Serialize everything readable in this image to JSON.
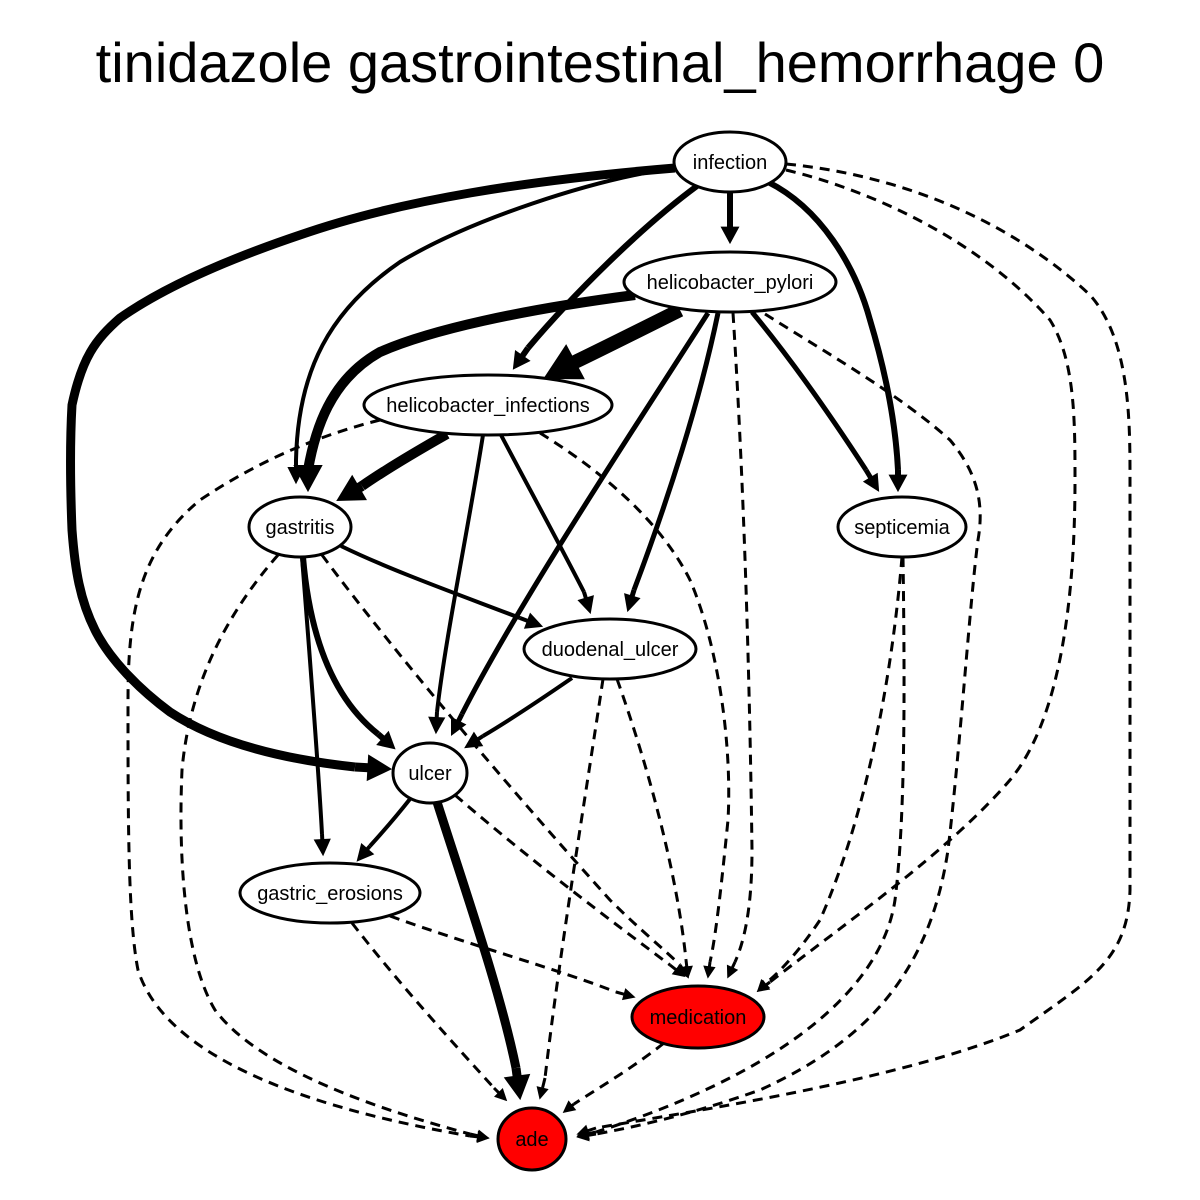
{
  "title": "tinidazole gastrointestinal_hemorrhage 0",
  "colors": {
    "node_fill": "#ffffff",
    "highlight_fill": "#ff0000",
    "stroke": "#000000"
  },
  "nodes": [
    {
      "id": "infection",
      "label": "infection",
      "highlight": false
    },
    {
      "id": "helicobacter_pylori",
      "label": "helicobacter_pylori",
      "highlight": false
    },
    {
      "id": "helicobacter_infections",
      "label": "helicobacter_infections",
      "highlight": false
    },
    {
      "id": "gastritis",
      "label": "gastritis",
      "highlight": false
    },
    {
      "id": "septicemia",
      "label": "septicemia",
      "highlight": false
    },
    {
      "id": "duodenal_ulcer",
      "label": "duodenal_ulcer",
      "highlight": false
    },
    {
      "id": "ulcer",
      "label": "ulcer",
      "highlight": false
    },
    {
      "id": "gastric_erosions",
      "label": "gastric_erosions",
      "highlight": false
    },
    {
      "id": "medication",
      "label": "medication",
      "highlight": true
    },
    {
      "id": "ade",
      "label": "ade",
      "highlight": true
    }
  ],
  "edges": [
    {
      "from": "infection",
      "to": "helicobacter_pylori",
      "style": "solid"
    },
    {
      "from": "infection",
      "to": "helicobacter_infections",
      "style": "solid"
    },
    {
      "from": "infection",
      "to": "gastritis",
      "style": "solid"
    },
    {
      "from": "infection",
      "to": "ulcer",
      "style": "solid"
    },
    {
      "from": "infection",
      "to": "septicemia",
      "style": "solid"
    },
    {
      "from": "infection",
      "to": "medication",
      "style": "dashed"
    },
    {
      "from": "infection",
      "to": "ade",
      "style": "dashed"
    },
    {
      "from": "helicobacter_pylori",
      "to": "helicobacter_infections",
      "style": "solid"
    },
    {
      "from": "helicobacter_pylori",
      "to": "gastritis",
      "style": "solid"
    },
    {
      "from": "helicobacter_pylori",
      "to": "ulcer",
      "style": "solid"
    },
    {
      "from": "helicobacter_pylori",
      "to": "duodenal_ulcer",
      "style": "solid"
    },
    {
      "from": "helicobacter_pylori",
      "to": "septicemia",
      "style": "solid"
    },
    {
      "from": "helicobacter_pylori",
      "to": "medication",
      "style": "dashed"
    },
    {
      "from": "helicobacter_pylori",
      "to": "ade",
      "style": "dashed"
    },
    {
      "from": "helicobacter_infections",
      "to": "gastritis",
      "style": "solid"
    },
    {
      "from": "helicobacter_infections",
      "to": "ulcer",
      "style": "solid"
    },
    {
      "from": "helicobacter_infections",
      "to": "duodenal_ulcer",
      "style": "solid"
    },
    {
      "from": "helicobacter_infections",
      "to": "medication",
      "style": "dashed"
    },
    {
      "from": "helicobacter_infections",
      "to": "ade",
      "style": "dashed"
    },
    {
      "from": "gastritis",
      "to": "duodenal_ulcer",
      "style": "solid"
    },
    {
      "from": "gastritis",
      "to": "ulcer",
      "style": "solid"
    },
    {
      "from": "gastritis",
      "to": "gastric_erosions",
      "style": "solid"
    },
    {
      "from": "gastritis",
      "to": "medication",
      "style": "dashed"
    },
    {
      "from": "gastritis",
      "to": "ade",
      "style": "dashed"
    },
    {
      "from": "septicemia",
      "to": "medication",
      "style": "dashed"
    },
    {
      "from": "septicemia",
      "to": "ade",
      "style": "dashed"
    },
    {
      "from": "duodenal_ulcer",
      "to": "ulcer",
      "style": "solid"
    },
    {
      "from": "duodenal_ulcer",
      "to": "medication",
      "style": "dashed"
    },
    {
      "from": "duodenal_ulcer",
      "to": "ade",
      "style": "dashed"
    },
    {
      "from": "ulcer",
      "to": "gastric_erosions",
      "style": "solid"
    },
    {
      "from": "ulcer",
      "to": "ade",
      "style": "solid"
    },
    {
      "from": "ulcer",
      "to": "medication",
      "style": "dashed"
    },
    {
      "from": "gastric_erosions",
      "to": "medication",
      "style": "dashed"
    },
    {
      "from": "gastric_erosions",
      "to": "ade",
      "style": "dashed"
    },
    {
      "from": "medication",
      "to": "ade",
      "style": "dashed"
    }
  ]
}
